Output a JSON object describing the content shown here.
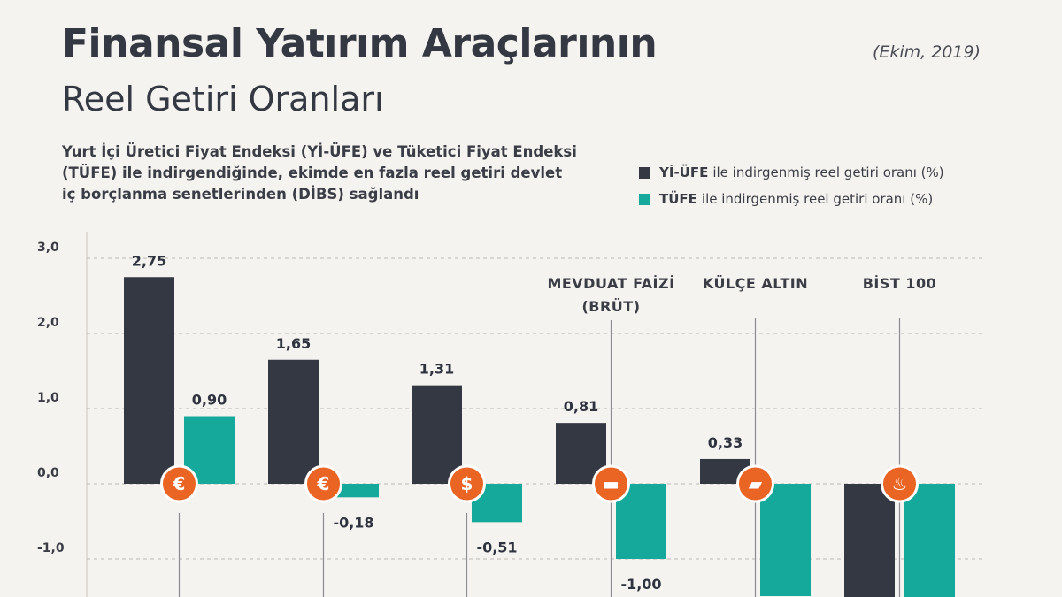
{
  "header": {
    "title_line1": "Finansal Yatırım Araçlarının",
    "title_line2": "Reel Getiri Oranları",
    "date": "(Ekim, 2019)",
    "subtitle": "Yurt İçi Üretici Fiyat Endeksi (Yİ-ÜFE) ve Tüketici Fiyat Endeksi (TÜFE) ile indirgendiğinde, ekimde en fazla reel getiri devlet iç borçlanma senetlerinden (DİBS) sağlandı"
  },
  "legend": [
    {
      "key": "Yİ-ÜFE",
      "text": "ile indirgenmiş reel getiri oranı (%)",
      "color": "#343843"
    },
    {
      "key": "TÜFE",
      "text": "ile indirgenmiş reel getiri oranı (%)",
      "color": "#14a99b"
    }
  ],
  "chart_data": {
    "type": "bar",
    "ylim": [
      -1.5,
      3.0
    ],
    "yticks": [
      "3,0",
      "2,0",
      "1,0",
      "0,0",
      "-1,0"
    ],
    "ytick_values": [
      3,
      2,
      1,
      0,
      -1
    ],
    "grid": true,
    "categories": [
      "",
      "",
      "",
      "MEVDUAT FAİZİ (BRÜT)",
      "KÜLÇE ALTIN",
      "BİST 100"
    ],
    "category_label_lines": [
      [],
      [],
      [],
      [
        "MEVDUAT FAİZİ",
        "(BRÜT)"
      ],
      [
        "KÜLÇE ALTIN"
      ],
      [
        "BİST 100"
      ]
    ],
    "category_icons": [
      "euro-icon",
      "euro-icon",
      "dollar-icon",
      "banknote-icon",
      "gold-bars-icon",
      "flame-icon"
    ],
    "category_icon_glyphs": [
      "€",
      "€",
      "$",
      "▬",
      "▰",
      "♨"
    ],
    "series": [
      {
        "name": "Yİ-ÜFE",
        "color": "#343843",
        "values": [
          2.75,
          1.65,
          1.31,
          0.81,
          0.33,
          null
        ],
        "labels": [
          "2,75",
          "1,65",
          "1,31",
          "0,81",
          "0,33",
          ""
        ]
      },
      {
        "name": "TÜFE",
        "color": "#14a99b",
        "values": [
          0.9,
          -0.18,
          -0.51,
          -1.0,
          null,
          null
        ],
        "labels": [
          "0,90",
          "-0,18",
          "-0,51",
          "-1,00",
          "",
          ""
        ]
      }
    ],
    "icon_color": "#ea6424"
  }
}
